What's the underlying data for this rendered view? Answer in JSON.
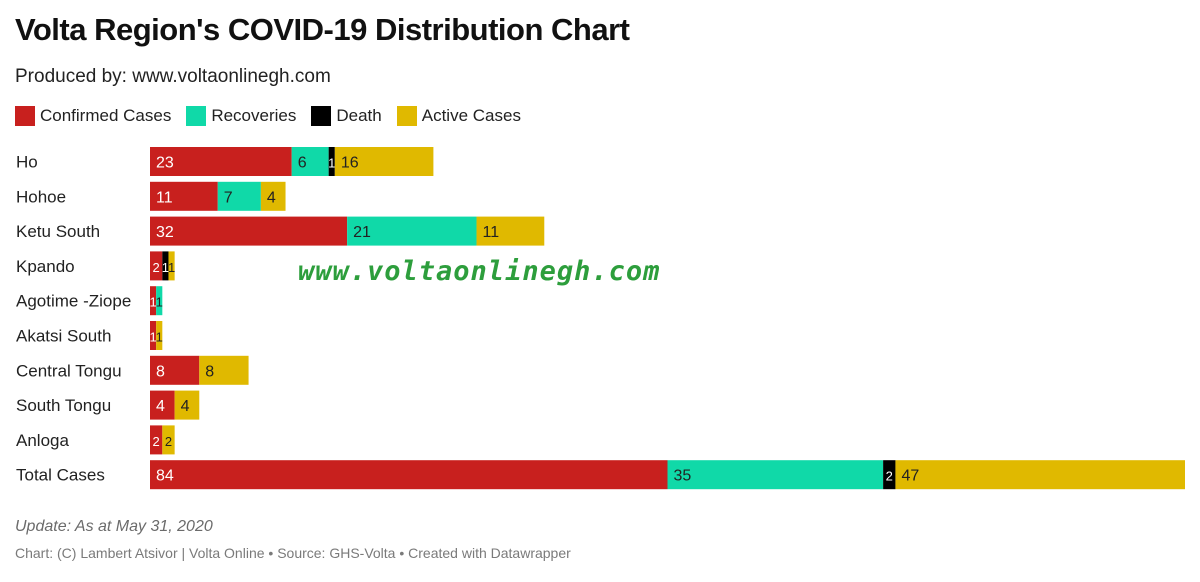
{
  "title": "Volta Region's COVID-19 Distribution Chart",
  "subtitle": "Produced by: www.voltaonlinegh.com",
  "watermark": "www.voltaonlinegh.com",
  "footer": {
    "note": "Update: As at May 31, 2020",
    "credit": "Chart: (C) Lambert Atsivor | Volta Online • Source: GHS-Volta • Created with Datawrapper"
  },
  "chart_data": {
    "type": "bar",
    "orientation": "horizontal",
    "stacked": true,
    "title": "Volta Region's COVID-19 Distribution Chart",
    "legend_position": "top-left",
    "grid": false,
    "categories": [
      "Ho",
      "Hohoe",
      "Ketu South",
      "Kpando",
      "Agotime -Ziope",
      "Akatsi South",
      "Central Tongu",
      "South Tongu",
      "Anloga",
      "Total Cases"
    ],
    "series": [
      {
        "name": "Confirmed Cases",
        "color": "#c8201e",
        "label_color": "#ffffff",
        "values": [
          23,
          11,
          32,
          2,
          1,
          1,
          8,
          4,
          2,
          84
        ]
      },
      {
        "name": "Recoveries",
        "color": "#10d9a8",
        "label_color": "#222222",
        "values": [
          6,
          7,
          21,
          0,
          1,
          0,
          0,
          0,
          0,
          35
        ]
      },
      {
        "name": "Death",
        "color": "#000000",
        "label_color": "#ffffff",
        "values": [
          1,
          0,
          0,
          1,
          0,
          0,
          0,
          0,
          0,
          2
        ]
      },
      {
        "name": "Active Cases",
        "color": "#e0b900",
        "label_color": "#222222",
        "values": [
          16,
          4,
          11,
          1,
          0,
          1,
          8,
          4,
          2,
          47
        ]
      }
    ],
    "xlim": [
      0,
      168
    ]
  }
}
